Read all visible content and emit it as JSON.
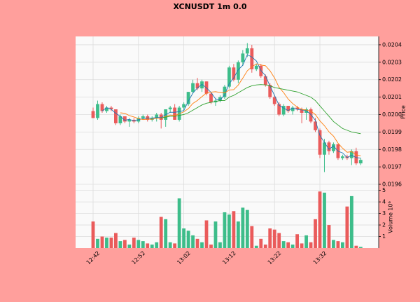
{
  "chart_data": {
    "type": "candlestick",
    "title": "XCNUSDT 1m 0.0",
    "x": [
      "12:42",
      "12:43",
      "12:44",
      "12:45",
      "12:46",
      "12:47",
      "12:48",
      "12:49",
      "12:50",
      "12:51",
      "12:52",
      "12:53",
      "12:54",
      "12:55",
      "12:56",
      "12:57",
      "12:58",
      "12:59",
      "13:00",
      "13:01",
      "13:02",
      "13:03",
      "13:04",
      "13:05",
      "13:06",
      "13:07",
      "13:08",
      "13:09",
      "13:10",
      "13:11",
      "13:12",
      "13:13",
      "13:14",
      "13:15",
      "13:16",
      "13:17",
      "13:18",
      "13:19",
      "13:20",
      "13:21",
      "13:22",
      "13:23",
      "13:24",
      "13:25",
      "13:26",
      "13:27",
      "13:28",
      "13:29",
      "13:30",
      "13:31",
      "13:32",
      "13:33",
      "13:34",
      "13:35",
      "13:36",
      "13:37",
      "13:38",
      "13:39",
      "13:40",
      "13:41"
    ],
    "xticks": [
      "12:42",
      "12:52",
      "13:02",
      "13:12",
      "13:22",
      "13:32"
    ],
    "open": [
      0.02002,
      0.01998,
      0.02006,
      0.02002,
      0.02004,
      0.02003,
      0.01995,
      0.01999,
      0.01996,
      0.01997,
      0.01996,
      0.01998,
      0.01999,
      0.01997,
      0.01998,
      0.02,
      0.01997,
      0.02003,
      0.02004,
      0.01997,
      0.02004,
      0.02006,
      0.02013,
      0.02018,
      0.02015,
      0.02019,
      0.02012,
      0.02007,
      0.02008,
      0.0201,
      0.02016,
      0.02027,
      0.0202,
      0.0203,
      0.02035,
      0.02038,
      0.02026,
      0.02028,
      0.02022,
      0.02017,
      0.0201,
      0.02006,
      0.02,
      0.02005,
      0.02002,
      0.02004,
      0.02003,
      0.02001,
      0.02003,
      0.01996,
      0.01991,
      0.01977,
      0.01984,
      0.01979,
      0.01983,
      0.01975,
      0.01976,
      0.01975,
      0.01979,
      0.01972
    ],
    "high": [
      0.02004,
      0.02008,
      0.02007,
      0.02005,
      0.02005,
      0.02003,
      0.02,
      0.01999,
      0.01998,
      0.01998,
      0.01999,
      0.02,
      0.02,
      0.01999,
      0.02001,
      0.02001,
      0.02003,
      0.02005,
      0.02006,
      0.02005,
      0.02007,
      0.02013,
      0.0202,
      0.02021,
      0.0202,
      0.02019,
      0.02013,
      0.02009,
      0.02011,
      0.02017,
      0.02028,
      0.02029,
      0.02031,
      0.02037,
      0.02041,
      0.0204,
      0.02029,
      0.02029,
      0.02023,
      0.02018,
      0.02011,
      0.02007,
      0.02006,
      0.02005,
      0.02005,
      0.02005,
      0.02004,
      0.02004,
      0.02004,
      0.01998,
      0.01992,
      0.01986,
      0.01985,
      0.01984,
      0.01983,
      0.01977,
      0.01977,
      0.0198,
      0.01981,
      0.01975
    ],
    "low": [
      0.01998,
      0.01997,
      0.02001,
      0.02001,
      0.02002,
      0.01994,
      0.01994,
      0.01995,
      0.01993,
      0.01995,
      0.01995,
      0.01997,
      0.01996,
      0.01996,
      0.01996,
      0.01992,
      0.01993,
      0.02001,
      0.01997,
      0.01996,
      0.02002,
      0.02005,
      0.02012,
      0.02014,
      0.02013,
      0.02011,
      0.02006,
      0.02005,
      0.02007,
      0.02009,
      0.02015,
      0.02019,
      0.02018,
      0.02028,
      0.02033,
      0.02024,
      0.02025,
      0.02021,
      0.02016,
      0.02009,
      0.02005,
      0.01999,
      0.01999,
      0.02001,
      0.02,
      0.02002,
      0.01995,
      0.01997,
      0.01995,
      0.0199,
      0.01975,
      0.01967,
      0.01977,
      0.01978,
      0.01974,
      0.01974,
      0.01974,
      0.01971,
      0.01971,
      0.01971
    ],
    "close": [
      0.01998,
      0.02006,
      0.02002,
      0.02004,
      0.02003,
      0.01995,
      0.01999,
      0.01996,
      0.01997,
      0.01996,
      0.01998,
      0.01999,
      0.01997,
      0.01998,
      0.02,
      0.01997,
      0.02003,
      0.02004,
      0.01997,
      0.02004,
      0.02006,
      0.02013,
      0.02018,
      0.02015,
      0.02019,
      0.02012,
      0.02007,
      0.02008,
      0.0201,
      0.02016,
      0.02027,
      0.0202,
      0.0203,
      0.02035,
      0.02038,
      0.02026,
      0.02028,
      0.02022,
      0.02017,
      0.0201,
      0.02006,
      0.02,
      0.02005,
      0.02002,
      0.02004,
      0.02003,
      0.02001,
      0.02003,
      0.01996,
      0.01991,
      0.01977,
      0.01984,
      0.01979,
      0.01983,
      0.01975,
      0.01976,
      0.01975,
      0.01979,
      0.01972,
      0.01974
    ],
    "volume": [
      2.3,
      0.8,
      1.0,
      0.9,
      0.9,
      1.3,
      0.6,
      0.7,
      0.3,
      0.9,
      0.7,
      0.6,
      0.4,
      0.3,
      0.5,
      2.7,
      2.5,
      0.5,
      0.4,
      4.3,
      1.7,
      1.5,
      1.1,
      0.8,
      0.5,
      2.4,
      0.3,
      2.3,
      0.5,
      3.1,
      2.9,
      3.2,
      2.3,
      3.5,
      3.3,
      1.9,
      0.2,
      0.8,
      0.3,
      1.7,
      1.6,
      1.3,
      0.6,
      0.5,
      0.3,
      1.2,
      0.4,
      1.1,
      0.5,
      2.5,
      4.9,
      4.8,
      2.0,
      0.7,
      0.6,
      0.5,
      3.6,
      4.5,
      0.2,
      0.1
    ],
    "up_color": "#3dbd8a",
    "down_color": "#ea5b5b",
    "lines": [
      {
        "color": "#1f77b4",
        "values": [
          null,
          null,
          0.02002,
          0.02004,
          0.02003,
          0.020007,
          0.01999,
          0.019967,
          0.019973,
          0.019963,
          0.01997,
          0.019977,
          0.01998,
          0.01998,
          0.019983,
          0.019983,
          0.02,
          0.020013,
          0.020013,
          0.020017,
          0.020023,
          0.020077,
          0.020123,
          0.020153,
          0.020173,
          0.020153,
          0.020127,
          0.02009,
          0.020083,
          0.020113,
          0.020177,
          0.02021,
          0.020257,
          0.020283,
          0.020343,
          0.02033,
          0.020307,
          0.020253,
          0.020223,
          0.020163,
          0.02011,
          0.020053,
          0.020037,
          0.020023,
          0.020037,
          0.02003,
          0.020027,
          0.020023,
          0.02,
          0.019967,
          0.01988,
          0.01984,
          0.0198,
          0.01982,
          0.01979,
          0.01978,
          0.019753,
          0.019767,
          0.019753,
          0.01975
        ]
      },
      {
        "color": "#ff7f0e",
        "values": [
          null,
          null,
          null,
          null,
          null,
          null,
          0.02001,
          0.020007,
          0.019994,
          0.019986,
          0.019977,
          0.019971,
          0.019974,
          0.019973,
          0.019979,
          0.019979,
          0.019989,
          0.019997,
          0.019994,
          0.020004,
          0.020016,
          0.020034,
          0.020064,
          0.020081,
          0.020103,
          0.020124,
          0.020129,
          0.020131,
          0.020127,
          0.020124,
          0.020141,
          0.020143,
          0.020169,
          0.020209,
          0.020251,
          0.020274,
          0.020291,
          0.020284,
          0.02028,
          0.020251,
          0.02021,
          0.020156,
          0.020126,
          0.020089,
          0.020063,
          0.020043,
          0.02003,
          0.020026,
          0.02002,
          0.02,
          0.019964,
          0.019936,
          0.019901,
          0.019876,
          0.019836,
          0.019807,
          0.019784,
          0.019787,
          0.01977,
          0.019763
        ]
      },
      {
        "color": "#2ca02c",
        "values": [
          null,
          null,
          null,
          null,
          null,
          null,
          null,
          null,
          null,
          null,
          null,
          null,
          null,
          null,
          null,
          0.01998,
          0.019985,
          0.01999,
          0.01999,
          0.019995,
          0.02,
          0.02001,
          0.020025,
          0.02004,
          0.020055,
          0.020065,
          0.02007,
          0.020075,
          0.02008,
          0.02008,
          0.0201,
          0.02011,
          0.020125,
          0.02014,
          0.020155,
          0.020165,
          0.02017,
          0.020172,
          0.02017,
          0.020165,
          0.020155,
          0.02015,
          0.020145,
          0.02014,
          0.020135,
          0.02013,
          0.02012,
          0.02011,
          0.0201,
          0.02008,
          0.02005,
          0.02002,
          0.01999,
          0.01996,
          0.01994,
          0.01992,
          0.01991,
          0.0199,
          0.019895,
          0.01989
        ]
      }
    ],
    "ylabel": "Price",
    "ylim": [
      0.019572,
      0.020448
    ],
    "yticks": [
      0.0196,
      0.0197,
      0.0198,
      0.0199,
      {
        "value": 0.02,
        "label": "0.0200"
      },
      0.0201,
      0.0202,
      0.0203,
      0.0204
    ],
    "volume_label": "Volume",
    "volume_scale_label": "10⁶",
    "volume_ylim": [
      0,
      5.1
    ],
    "volume_yticks": [
      1,
      2,
      3,
      4,
      5
    ],
    "grid": true
  }
}
